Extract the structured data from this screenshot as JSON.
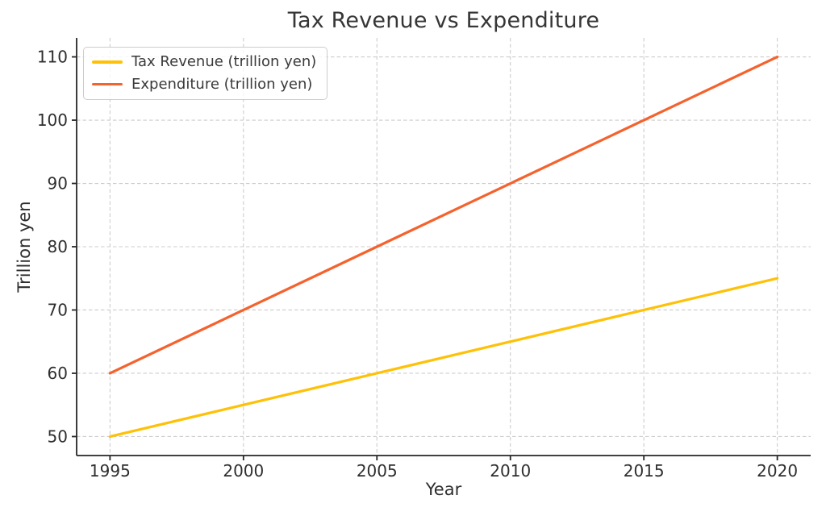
{
  "chart_data": {
    "type": "line",
    "title": "Tax Revenue vs Expenditure",
    "xlabel": "Year",
    "ylabel": "Trillion yen",
    "x": [
      1995,
      2000,
      2005,
      2010,
      2015,
      2020
    ],
    "series": [
      {
        "name": "Tax Revenue (trillion yen)",
        "color": "#FFC107",
        "values": [
          50,
          55,
          60,
          65,
          70,
          75
        ]
      },
      {
        "name": "Expenditure (trillion yen)",
        "color": "#F4632E",
        "values": [
          60,
          70,
          80,
          90,
          100,
          110
        ]
      }
    ],
    "xticks": [
      1995,
      2000,
      2005,
      2010,
      2015,
      2020
    ],
    "yticks": [
      50,
      60,
      70,
      80,
      90,
      100,
      110
    ],
    "xlim": [
      1993.75,
      2021.25
    ],
    "ylim": [
      47,
      113
    ],
    "grid": true,
    "legend_position": "upper left"
  },
  "colors": {
    "background": "#ffffff",
    "grid": "#cccccc",
    "spine": "#262626",
    "title_text": "#363636",
    "tick_text": "#2e2e2e",
    "legend_border": "#cccccc"
  }
}
